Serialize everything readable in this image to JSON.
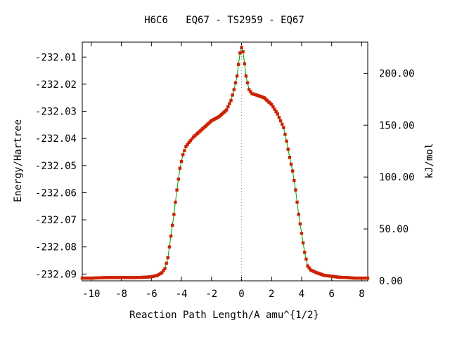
{
  "chart_data": {
    "type": "line",
    "title": "H6C6   EQ67 - TS2959 - EQ67",
    "xlabel": "Reaction Path Length/A amu^{1/2}",
    "ylabel": "Energy/Hartree",
    "y2label": "kJ/mol",
    "xlim": [
      -10.6,
      8.4
    ],
    "ylim": [
      -232.0925,
      -232.0045
    ],
    "y2lim": [
      0,
      230
    ],
    "x_ticks": [
      -10,
      -8,
      -6,
      -4,
      -2,
      0,
      2,
      4,
      6,
      8
    ],
    "y_ticks": [
      -232.09,
      -232.08,
      -232.07,
      -232.06,
      -232.05,
      -232.04,
      -232.03,
      -232.02,
      -232.01
    ],
    "y2_ticks": [
      "0.00",
      "50.00",
      "100.00",
      "150.00",
      "200.00"
    ],
    "y2_tick_values": [
      0,
      50,
      100,
      150,
      200
    ],
    "zero_line_x": 0,
    "line_color": "#00a000",
    "marker_color": "#cc2200",
    "series": [
      {
        "x": [
          -10.6,
          -10.0,
          -9.0,
          -8.0,
          -7.0,
          -6.5,
          -6.0,
          -5.6,
          -5.3,
          -5.1,
          -4.9,
          -4.7,
          -4.5,
          -4.3,
          -4.1,
          -3.9,
          -3.7,
          -3.5,
          -3.2,
          -3.0,
          -2.5,
          -2.0,
          -1.5,
          -1.0,
          -0.7,
          -0.5,
          -0.3,
          -0.1,
          0.0,
          0.1,
          0.3,
          0.5,
          0.7,
          1.0,
          1.5,
          2.0,
          2.4,
          2.8,
          3.0,
          3.2,
          3.4,
          3.6,
          3.8,
          4.0,
          4.2,
          4.4,
          4.6,
          5.0,
          5.5,
          6.0,
          6.5,
          7.0,
          7.5,
          8.4
        ],
        "y": [
          -232.0915,
          -232.0915,
          -232.0913,
          -232.0913,
          -232.0913,
          -232.0912,
          -232.091,
          -232.0905,
          -232.0895,
          -232.088,
          -232.084,
          -232.076,
          -232.068,
          -232.059,
          -232.051,
          -232.046,
          -232.043,
          -232.0415,
          -232.0395,
          -232.0385,
          -232.036,
          -232.0335,
          -232.032,
          -232.0295,
          -232.026,
          -232.022,
          -232.017,
          -232.0085,
          -232.0065,
          -232.008,
          -232.017,
          -232.022,
          -232.0235,
          -232.024,
          -232.025,
          -232.0275,
          -232.031,
          -232.036,
          -232.041,
          -232.047,
          -232.052,
          -232.059,
          -232.068,
          -232.075,
          -232.082,
          -232.087,
          -232.0885,
          -232.0895,
          -232.0905,
          -232.0908,
          -232.0912,
          -232.0913,
          -232.0915,
          -232.0915
        ]
      }
    ]
  }
}
